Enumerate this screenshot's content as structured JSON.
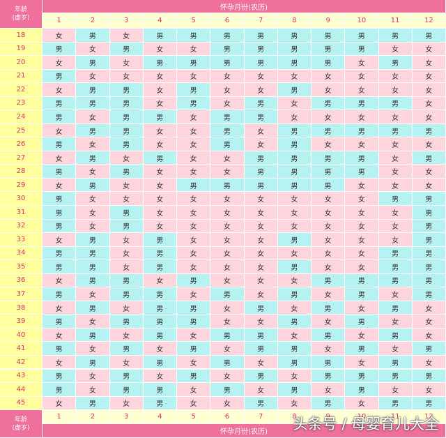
{
  "header": {
    "corner_lines": [
      "年龄",
      "(虚岁)"
    ],
    "title": "怀孕月份(农历)",
    "months": [
      "1",
      "2",
      "3",
      "4",
      "5",
      "6",
      "7",
      "8",
      "9",
      "10",
      "11",
      "12"
    ]
  },
  "rows": [
    {
      "age": "18",
      "cells": [
        "女",
        "男",
        "女",
        "男",
        "男",
        "男",
        "男",
        "男",
        "男",
        "男",
        "男",
        "男"
      ]
    },
    {
      "age": "19",
      "cells": [
        "男",
        "女",
        "男",
        "女",
        "女",
        "男",
        "男",
        "男",
        "男",
        "男",
        "女",
        "女"
      ]
    },
    {
      "age": "20",
      "cells": [
        "女",
        "男",
        "女",
        "男",
        "男",
        "男",
        "男",
        "男",
        "男",
        "女",
        "男",
        "女"
      ]
    },
    {
      "age": "21",
      "cells": [
        "男",
        "女",
        "女",
        "女",
        "女",
        "女",
        "女",
        "女",
        "女",
        "女",
        "女",
        "女"
      ]
    },
    {
      "age": "22",
      "cells": [
        "女",
        "男",
        "男",
        "女",
        "男",
        "女",
        "女",
        "男",
        "女",
        "女",
        "女",
        "女"
      ]
    },
    {
      "age": "23",
      "cells": [
        "男",
        "男",
        "男",
        "女",
        "男",
        "女",
        "男",
        "女",
        "男",
        "男",
        "男",
        "女"
      ]
    },
    {
      "age": "24",
      "cells": [
        "男",
        "女",
        "男",
        "男",
        "女",
        "男",
        "男",
        "女",
        "女",
        "女",
        "女",
        "女"
      ]
    },
    {
      "age": "25",
      "cells": [
        "女",
        "男",
        "男",
        "女",
        "女",
        "男",
        "女",
        "男",
        "男",
        "男",
        "男",
        "男"
      ]
    },
    {
      "age": "26",
      "cells": [
        "男",
        "女",
        "男",
        "女",
        "女",
        "男",
        "女",
        "男",
        "女",
        "女",
        "女",
        "女"
      ]
    },
    {
      "age": "27",
      "cells": [
        "女",
        "男",
        "女",
        "男",
        "女",
        "女",
        "男",
        "男",
        "男",
        "男",
        "女",
        "男"
      ]
    },
    {
      "age": "28",
      "cells": [
        "男",
        "女",
        "男",
        "女",
        "女",
        "女",
        "男",
        "男",
        "男",
        "男",
        "女",
        "女"
      ]
    },
    {
      "age": "29",
      "cells": [
        "女",
        "男",
        "女",
        "女",
        "男",
        "男",
        "男",
        "男",
        "男",
        "女",
        "女",
        "女"
      ]
    },
    {
      "age": "30",
      "cells": [
        "男",
        "女",
        "女",
        "女",
        "女",
        "女",
        "女",
        "女",
        "女",
        "女",
        "男",
        "男"
      ]
    },
    {
      "age": "31",
      "cells": [
        "男",
        "女",
        "男",
        "女",
        "女",
        "女",
        "女",
        "女",
        "女",
        "女",
        "女",
        "男"
      ]
    },
    {
      "age": "32",
      "cells": [
        "男",
        "女",
        "男",
        "女",
        "女",
        "女",
        "女",
        "女",
        "女",
        "女",
        "女",
        "男"
      ]
    },
    {
      "age": "33",
      "cells": [
        "女",
        "男",
        "女",
        "男",
        "女",
        "女",
        "女",
        "男",
        "女",
        "女",
        "女",
        "男"
      ]
    },
    {
      "age": "34",
      "cells": [
        "男",
        "男",
        "女",
        "男",
        "女",
        "女",
        "女",
        "女",
        "女",
        "女",
        "男",
        "男"
      ]
    },
    {
      "age": "35",
      "cells": [
        "男",
        "男",
        "女",
        "男",
        "女",
        "女",
        "女",
        "男",
        "女",
        "女",
        "男",
        "男"
      ]
    },
    {
      "age": "36",
      "cells": [
        "女",
        "男",
        "男",
        "女",
        "男",
        "女",
        "女",
        "女",
        "男",
        "男",
        "男",
        "男"
      ]
    },
    {
      "age": "37",
      "cells": [
        "男",
        "女",
        "男",
        "男",
        "女",
        "男",
        "女",
        "男",
        "女",
        "男",
        "女",
        "男"
      ]
    },
    {
      "age": "38",
      "cells": [
        "女",
        "男",
        "女",
        "男",
        "男",
        "女",
        "男",
        "女",
        "男",
        "女",
        "男",
        "女"
      ]
    },
    {
      "age": "39",
      "cells": [
        "男",
        "女",
        "男",
        "男",
        "男",
        "女",
        "女",
        "男",
        "女",
        "男",
        "女",
        "女"
      ]
    },
    {
      "age": "40",
      "cells": [
        "女",
        "男",
        "女",
        "男",
        "女",
        "男",
        "男",
        "女",
        "男",
        "女",
        "男",
        "女"
      ]
    },
    {
      "age": "41",
      "cells": [
        "男",
        "女",
        "男",
        "女",
        "男",
        "女",
        "男",
        "男",
        "女",
        "男",
        "女",
        "男"
      ]
    },
    {
      "age": "42",
      "cells": [
        "女",
        "男",
        "女",
        "男",
        "女",
        "男",
        "女",
        "男",
        "男",
        "女",
        "男",
        "女"
      ]
    },
    {
      "age": "43",
      "cells": [
        "男",
        "女",
        "男",
        "女",
        "男",
        "女",
        "男",
        "女",
        "男",
        "男",
        "男",
        "男"
      ]
    },
    {
      "age": "44",
      "cells": [
        "男",
        "女",
        "男",
        "男",
        "女",
        "男",
        "女",
        "男",
        "女",
        "男",
        "女",
        "女"
      ]
    },
    {
      "age": "45",
      "cells": [
        "女",
        "男",
        "女",
        "男",
        "女",
        "女",
        "男",
        "女",
        "男",
        "女",
        "男",
        "男"
      ]
    }
  ],
  "footer": {
    "corner_lines": [
      "年龄",
      "(虚岁)"
    ],
    "months": [
      "1",
      "2",
      "3",
      "4",
      "5",
      "6",
      "7",
      "8",
      "9",
      "10",
      "11",
      "12"
    ],
    "title": "怀孕月份(农历)"
  },
  "watermark": "头条号 / 母婴育儿大全"
}
